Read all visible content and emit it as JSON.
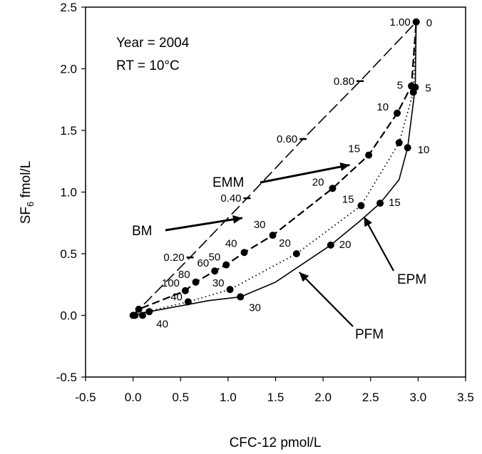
{
  "chart_data": {
    "type": "line",
    "title": "",
    "xlabel": "CFC-12 pmol/L",
    "ylabel_parts": [
      "SF",
      "6",
      " fmol/L"
    ],
    "xlim": [
      -0.5,
      3.5
    ],
    "ylim": [
      -0.5,
      2.5
    ],
    "xticks": [
      -0.5,
      0.0,
      0.5,
      1.0,
      1.5,
      2.0,
      2.5,
      3.0,
      3.5
    ],
    "xtick_labels": [
      "-0.5",
      "0.0",
      "0.5",
      "1.0",
      "1.5",
      "2.0",
      "2.5",
      "3.0",
      "3.5"
    ],
    "yticks": [
      -0.5,
      0.0,
      0.5,
      1.0,
      1.5,
      2.0,
      2.5
    ],
    "ytick_labels": [
      "-0.5",
      "0.0",
      "0.5",
      "1.0",
      "1.5",
      "2.0",
      "2.5"
    ],
    "grid": false,
    "annotations_text": [
      "Year = 2004",
      "RT = 10°C"
    ],
    "series": [
      {
        "name": "BM",
        "style": "long-dash",
        "points": [
          [
            0.0,
            0.0
          ],
          [
            0.6,
            0.47
          ],
          [
            1.2,
            0.95
          ],
          [
            1.79,
            1.43
          ],
          [
            2.39,
            1.9
          ],
          [
            2.98,
            2.38
          ]
        ],
        "ticks": [
          {
            "x": 0.6,
            "y": 0.47,
            "label": "0.20"
          },
          {
            "x": 1.2,
            "y": 0.95,
            "label": "0.40"
          },
          {
            "x": 1.79,
            "y": 1.43,
            "label": "0.60"
          },
          {
            "x": 2.39,
            "y": 1.9,
            "label": "0.80"
          },
          {
            "x": 2.98,
            "y": 2.38,
            "label": "1.00"
          }
        ]
      },
      {
        "name": "EMM",
        "style": "dash",
        "points": [
          [
            0.0,
            0.0
          ],
          [
            0.06,
            0.05
          ],
          [
            0.55,
            0.2
          ],
          [
            0.66,
            0.27
          ],
          [
            0.86,
            0.36
          ],
          [
            0.98,
            0.41
          ],
          [
            1.17,
            0.51
          ],
          [
            1.47,
            0.65
          ],
          [
            2.1,
            1.03
          ],
          [
            2.48,
            1.3
          ],
          [
            2.78,
            1.64
          ],
          [
            2.93,
            1.86
          ],
          [
            2.98,
            2.38
          ]
        ],
        "markers": [
          {
            "x": 0.06,
            "y": 0.05,
            "label": ""
          },
          {
            "x": 0.55,
            "y": 0.2,
            "label": "100"
          },
          {
            "x": 0.66,
            "y": 0.27,
            "label": "80"
          },
          {
            "x": 0.86,
            "y": 0.36,
            "label": "60"
          },
          {
            "x": 0.98,
            "y": 0.41,
            "label": "50"
          },
          {
            "x": 1.17,
            "y": 0.51,
            "label": "40"
          },
          {
            "x": 1.47,
            "y": 0.65,
            "label": "30"
          },
          {
            "x": 2.1,
            "y": 1.03,
            "label": "20"
          },
          {
            "x": 2.48,
            "y": 1.3,
            "label": "15"
          },
          {
            "x": 2.78,
            "y": 1.64,
            "label": "10"
          },
          {
            "x": 2.93,
            "y": 1.86,
            "label": "5"
          },
          {
            "x": 2.98,
            "y": 2.38,
            "label": "0"
          }
        ]
      },
      {
        "name": "EPM",
        "style": "dot",
        "points": [
          [
            0.0,
            0.0
          ],
          [
            0.2,
            0.04
          ],
          [
            0.58,
            0.11
          ],
          [
            1.02,
            0.21
          ],
          [
            1.72,
            0.5
          ],
          [
            2.4,
            0.89
          ],
          [
            2.8,
            1.4
          ],
          [
            2.95,
            1.81
          ],
          [
            2.98,
            2.38
          ]
        ],
        "markers": [
          {
            "x": 0.58,
            "y": 0.11,
            "label": "40"
          },
          {
            "x": 1.02,
            "y": 0.21,
            "label": "30"
          },
          {
            "x": 1.72,
            "y": 0.5,
            "label": "20"
          },
          {
            "x": 2.4,
            "y": 0.89,
            "label": "15"
          },
          {
            "x": 2.8,
            "y": 1.4,
            "label": ""
          },
          {
            "x": 2.95,
            "y": 1.81,
            "label": ""
          }
        ]
      },
      {
        "name": "PFM",
        "style": "solid",
        "points": [
          [
            0.0,
            0.0
          ],
          [
            0.17,
            0.03
          ],
          [
            0.45,
            0.07
          ],
          [
            0.8,
            0.12
          ],
          [
            1.13,
            0.15
          ],
          [
            1.5,
            0.27
          ],
          [
            2.08,
            0.57
          ],
          [
            2.38,
            0.76
          ],
          [
            2.6,
            0.91
          ],
          [
            2.8,
            1.1
          ],
          [
            2.89,
            1.36
          ],
          [
            2.97,
            1.85
          ],
          [
            2.98,
            2.38
          ]
        ],
        "markers": [
          {
            "x": 0.17,
            "y": 0.03,
            "label": "40"
          },
          {
            "x": 1.13,
            "y": 0.15,
            "label": "30"
          },
          {
            "x": 2.08,
            "y": 0.57,
            "label": "20"
          },
          {
            "x": 2.6,
            "y": 0.91,
            "label": "15"
          },
          {
            "x": 2.89,
            "y": 1.36,
            "label": "10"
          },
          {
            "x": 2.97,
            "y": 1.85,
            "label": "5"
          }
        ]
      }
    ],
    "origin_markers": [
      [
        0.0,
        0.0
      ],
      [
        0.02,
        0.0
      ],
      [
        0.1,
        0.0
      ]
    ],
    "model_labels": [
      {
        "text": "BM",
        "arrow_to": [
          1.15,
          0.79
        ]
      },
      {
        "text": "EMM",
        "arrow_to": [
          2.28,
          1.22
        ]
      },
      {
        "text": "EPM",
        "arrow_to": [
          2.43,
          0.8
        ]
      },
      {
        "text": "PFM",
        "arrow_to": [
          1.75,
          0.35
        ]
      }
    ]
  }
}
